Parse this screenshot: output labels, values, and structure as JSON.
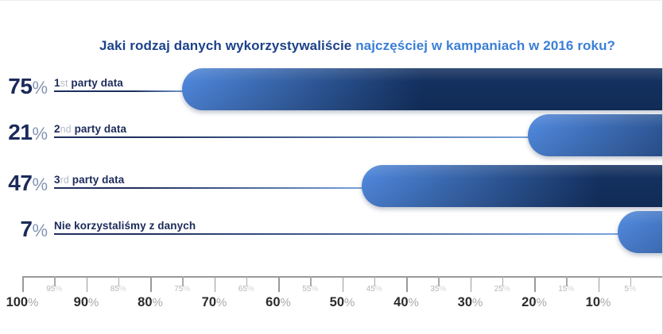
{
  "title": {
    "part_dark": "Jaki rodzaj danych wykorzystywaliście",
    "part_light": "najczęściej w kampaniach w 2016 roku?"
  },
  "percent_sign": "%",
  "chart_data": {
    "type": "bar",
    "orientation": "horizontal",
    "axis_direction": "reversed-right-to-left",
    "title": "Jaki rodzaj danych wykorzystywaliście najczęściej w kampaniach w 2016 roku?",
    "unit": "%",
    "xlim": [
      0,
      100
    ],
    "grid": false,
    "legend": false,
    "categories": [
      "1st party data",
      "2nd party data",
      "3rd party data",
      "Nie korzystaliśmy z danych"
    ],
    "values": [
      75,
      21,
      47,
      7
    ],
    "series": [
      {
        "value": 75,
        "value_text": "75",
        "label_num": "1",
        "label_ord": "st",
        "label_text": " party data"
      },
      {
        "value": 21,
        "value_text": "21",
        "label_num": "2",
        "label_ord": "nd",
        "label_text": " party data"
      },
      {
        "value": 47,
        "value_text": "47",
        "label_num": "3",
        "label_ord": "rd",
        "label_text": " party data"
      },
      {
        "value": 7,
        "value_text": "7",
        "label_num": "",
        "label_ord": "",
        "label_text": "Nie korzystaliśmy z danych"
      }
    ],
    "axis": {
      "major_ticks": [
        100,
        90,
        80,
        70,
        60,
        50,
        40,
        30,
        20,
        10
      ],
      "minor_ticks": [
        95,
        85,
        75,
        65,
        55,
        45,
        35,
        25,
        15,
        5
      ]
    }
  },
  "colors": {
    "title_dark": "#1d4289",
    "title_light": "#3b7fd6",
    "text_navy": "#1b2a5a",
    "ordinal_gray": "#b4bac6",
    "percent_gray": "#8594b3",
    "bar_gradient_start": "#4e86da",
    "bar_gradient_end": "#13305f",
    "axis_gray": "#9a9a9a",
    "axis_label": "#2b2b2b",
    "axis_minor_label": "#b5b5b5"
  }
}
